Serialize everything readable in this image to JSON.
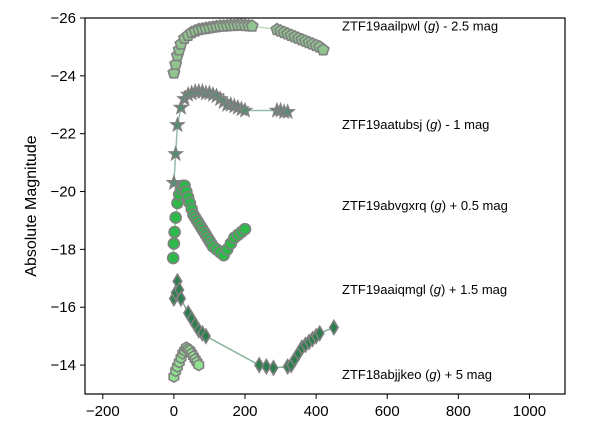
{
  "chart_data": {
    "type": "scatter",
    "title": "",
    "xlabel": "",
    "ylabel": "Absolute Magnitude",
    "xlim": [
      -250,
      1100
    ],
    "ylim": [
      -13.0,
      -26.0
    ],
    "y_inverted": true,
    "grid": false,
    "legend": "none",
    "x_ticks": [
      -200,
      0,
      200,
      400,
      600,
      800,
      1000
    ],
    "x_tick_labels": [
      "−200",
      "0",
      "200",
      "400",
      "600",
      "800",
      "1000"
    ],
    "y_ticks": [
      -26,
      -24,
      -22,
      -20,
      -18,
      -16,
      -14
    ],
    "y_tick_labels": [
      "−26",
      "−24",
      "−22",
      "−20",
      "−18",
      "−16",
      "−14"
    ],
    "series": [
      {
        "label": {
          "text_a": "ZTF19aailpwl (",
          "band": "g",
          "text_b": ") - 2.5 mag",
          "y": -25.7
        },
        "marker": "pentagon",
        "fill": "#8fc48f",
        "edge": "#808080",
        "x": [
          0,
          5,
          10,
          15,
          20,
          30,
          40,
          50,
          60,
          70,
          80,
          90,
          100,
          110,
          120,
          130,
          140,
          150,
          160,
          170,
          180,
          190,
          200,
          210,
          220,
          290,
          300,
          310,
          320,
          330,
          340,
          350,
          360,
          370,
          380,
          390,
          400,
          410,
          420
        ],
        "y": [
          -24.1,
          -24.4,
          -24.7,
          -24.9,
          -25.1,
          -25.3,
          -25.4,
          -25.5,
          -25.55,
          -25.6,
          -25.62,
          -25.64,
          -25.66,
          -25.68,
          -25.7,
          -25.72,
          -25.72,
          -25.73,
          -25.74,
          -25.74,
          -25.75,
          -25.75,
          -25.74,
          -25.73,
          -25.72,
          -25.6,
          -25.55,
          -25.5,
          -25.45,
          -25.4,
          -25.35,
          -25.3,
          -25.25,
          -25.2,
          -25.15,
          -25.1,
          -25.05,
          -25.0,
          -24.9
        ]
      },
      {
        "label": {
          "text_a": "ZTF19aatubsj (",
          "band": "g",
          "text_b": ") - 1 mag",
          "y": -22.3
        },
        "marker": "star",
        "fill": "#4d8f6f",
        "edge": "#808080",
        "x": [
          0,
          5,
          10,
          20,
          30,
          40,
          50,
          60,
          70,
          80,
          90,
          100,
          110,
          120,
          130,
          140,
          150,
          160,
          170,
          180,
          190,
          200,
          290,
          300,
          310,
          320
        ],
        "y": [
          -20.3,
          -21.3,
          -22.3,
          -22.9,
          -23.2,
          -23.35,
          -23.4,
          -23.45,
          -23.45,
          -23.45,
          -23.4,
          -23.4,
          -23.35,
          -23.3,
          -23.2,
          -23.1,
          -23.0,
          -23.0,
          -22.95,
          -22.9,
          -22.85,
          -22.8,
          -22.8,
          -22.8,
          -22.75,
          -22.75
        ]
      },
      {
        "label": {
          "text_a": "ZTF19abvgxrq (",
          "band": "g",
          "text_b": ") + 0.5 mag",
          "y": -19.5
        },
        "marker": "circle",
        "fill": "#2db84a",
        "edge": "#808080",
        "x": [
          -2,
          0,
          2,
          5,
          10,
          15,
          20,
          25,
          30,
          35,
          40,
          45,
          50,
          55,
          60,
          65,
          70,
          75,
          80,
          85,
          90,
          95,
          100,
          105,
          110,
          120,
          130,
          140,
          150,
          160,
          170,
          180,
          190,
          200
        ],
        "y": [
          -17.7,
          -18.2,
          -18.6,
          -19.1,
          -19.6,
          -19.9,
          -20.1,
          -20.2,
          -20.2,
          -20.0,
          -19.8,
          -19.6,
          -19.4,
          -19.2,
          -19.1,
          -19.0,
          -18.9,
          -18.8,
          -18.7,
          -18.6,
          -18.5,
          -18.4,
          -18.3,
          -18.2,
          -18.1,
          -18.0,
          -17.9,
          -17.8,
          -18.0,
          -18.2,
          -18.4,
          -18.5,
          -18.6,
          -18.7
        ]
      },
      {
        "label": {
          "text_a": "ZTF19aaiqmgl (",
          "band": "g",
          "text_b": ") + 1.5 mag",
          "y": -16.6
        },
        "marker": "diamond",
        "fill": "#2e7d4f",
        "edge": "#808080",
        "x": [
          0,
          5,
          10,
          15,
          20,
          40,
          50,
          60,
          70,
          80,
          90,
          240,
          260,
          280,
          320,
          330,
          340,
          350,
          360,
          370,
          380,
          390,
          400,
          410,
          450
        ],
        "y": [
          -16.3,
          -16.5,
          -16.9,
          -16.6,
          -16.3,
          -15.8,
          -15.6,
          -15.4,
          -15.2,
          -15.1,
          -15.0,
          -14.0,
          -13.95,
          -13.9,
          -13.95,
          -14.0,
          -14.2,
          -14.4,
          -14.6,
          -14.7,
          -14.8,
          -14.9,
          -15.0,
          -15.1,
          -15.3
        ]
      },
      {
        "label": {
          "text_a": "ZTF18abjjkeo (",
          "band": "g",
          "text_b": ") + 5 mag",
          "y": -13.65
        },
        "marker": "hexagon",
        "fill": "#90e090",
        "edge": "#808080",
        "x": [
          0,
          5,
          10,
          15,
          20,
          25,
          30,
          35,
          40,
          45,
          50,
          55,
          60,
          65,
          70
        ],
        "y": [
          -13.6,
          -13.8,
          -13.95,
          -14.1,
          -14.25,
          -14.4,
          -14.5,
          -14.6,
          -14.55,
          -14.5,
          -14.4,
          -14.3,
          -14.2,
          -14.1,
          -14.0
        ]
      }
    ]
  }
}
